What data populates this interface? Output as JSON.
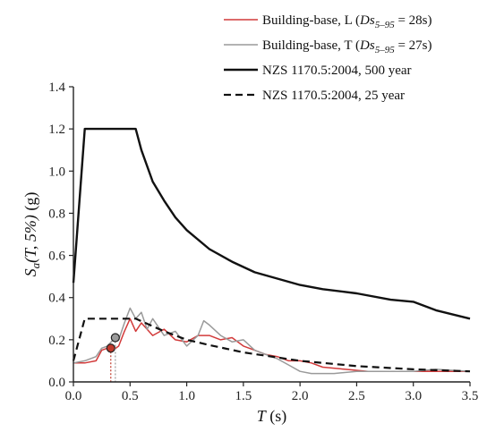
{
  "chart_data": {
    "type": "line",
    "xlabel_main": "T",
    "xlabel_unit": "(s)",
    "ylabel": "Sa(T, 5%) (g)",
    "ylabel_parts": {
      "var": "S",
      "sub": "a",
      "args": "(T, 5%)",
      "unit": "(g)"
    },
    "xlim": [
      0,
      3.5
    ],
    "ylim": [
      0,
      1.4
    ],
    "xticks": [
      0.0,
      0.5,
      1.0,
      1.5,
      2.0,
      2.5,
      3.0,
      3.5
    ],
    "xtick_labels": [
      "0.0",
      "0.5",
      "1.0",
      "1.5",
      "2.0",
      "2.5",
      "3.0",
      "3.5"
    ],
    "yticks": [
      0.0,
      0.2,
      0.4,
      0.6,
      0.8,
      1.0,
      1.2,
      1.4
    ],
    "ytick_labels": [
      "0.0",
      "0.2",
      "0.4",
      "0.6",
      "0.8",
      "1.0",
      "1.2",
      "1.4"
    ],
    "grid": false,
    "legend_position": "top-right",
    "series": [
      {
        "name": "Building-base, L (Ds5–95 = 28s)",
        "legend_main": "Building-base, L (",
        "legend_var": "Ds",
        "legend_sub": "5–95",
        "legend_tail": " = 28s)",
        "color": "#d23a3a",
        "dash": "solid",
        "x": [
          0,
          0.1,
          0.2,
          0.25,
          0.3,
          0.35,
          0.4,
          0.45,
          0.5,
          0.55,
          0.6,
          0.7,
          0.8,
          0.9,
          1.0,
          1.1,
          1.2,
          1.3,
          1.4,
          1.5,
          1.6,
          1.7,
          1.8,
          1.9,
          2.0,
          2.1,
          2.2,
          2.4,
          2.6,
          2.8,
          3.0,
          3.2,
          3.5
        ],
        "y": [
          0.09,
          0.09,
          0.1,
          0.15,
          0.16,
          0.15,
          0.17,
          0.24,
          0.3,
          0.24,
          0.28,
          0.22,
          0.25,
          0.2,
          0.19,
          0.22,
          0.22,
          0.2,
          0.21,
          0.17,
          0.15,
          0.13,
          0.12,
          0.1,
          0.1,
          0.09,
          0.07,
          0.06,
          0.05,
          0.05,
          0.05,
          0.05,
          0.05
        ]
      },
      {
        "name": "Building-base, T (Ds5–95 = 27s)",
        "legend_main": "Building-base, T (",
        "legend_var": "Ds",
        "legend_sub": "5–95",
        "legend_tail": " = 27s)",
        "color": "#9a9a9a",
        "dash": "solid",
        "x": [
          0,
          0.1,
          0.2,
          0.25,
          0.3,
          0.35,
          0.4,
          0.45,
          0.5,
          0.55,
          0.6,
          0.65,
          0.7,
          0.8,
          0.9,
          1.0,
          1.1,
          1.15,
          1.2,
          1.3,
          1.4,
          1.5,
          1.6,
          1.7,
          1.8,
          1.9,
          2.0,
          2.1,
          2.3,
          2.5,
          2.8,
          3.0,
          3.2,
          3.5
        ],
        "y": [
          0.09,
          0.1,
          0.12,
          0.16,
          0.17,
          0.2,
          0.2,
          0.28,
          0.35,
          0.3,
          0.33,
          0.25,
          0.3,
          0.22,
          0.24,
          0.17,
          0.22,
          0.29,
          0.27,
          0.22,
          0.19,
          0.2,
          0.15,
          0.13,
          0.11,
          0.08,
          0.05,
          0.04,
          0.04,
          0.05,
          0.05,
          0.05,
          0.06,
          0.05
        ]
      },
      {
        "name": "NZS 1170.5:2004, 500 year",
        "legend_main": "NZS 1170.5:2004, 500 year",
        "color": "#111111",
        "dash": "solid",
        "x": [
          0,
          0.1,
          0.55,
          0.6,
          0.7,
          0.8,
          0.9,
          1.0,
          1.2,
          1.4,
          1.6,
          1.8,
          2.0,
          2.2,
          2.5,
          2.8,
          3.0,
          3.2,
          3.5
        ],
        "y": [
          0.47,
          1.2,
          1.2,
          1.1,
          0.95,
          0.86,
          0.78,
          0.72,
          0.63,
          0.57,
          0.52,
          0.49,
          0.46,
          0.44,
          0.42,
          0.39,
          0.38,
          0.34,
          0.3
        ]
      },
      {
        "name": "NZS 1170.5:2004, 25 year",
        "legend_main": "NZS 1170.5:2004, 25 year",
        "color": "#111111",
        "dash": "dashed",
        "x": [
          0,
          0.1,
          0.55,
          0.8,
          1.0,
          1.2,
          1.5,
          2.0,
          2.5,
          3.0,
          3.5
        ],
        "y": [
          0.1,
          0.3,
          0.3,
          0.24,
          0.2,
          0.175,
          0.14,
          0.1,
          0.075,
          0.06,
          0.05
        ]
      }
    ],
    "markers": [
      {
        "x": 0.33,
        "y": 0.16,
        "color": "#c0392b"
      },
      {
        "x": 0.37,
        "y": 0.21,
        "color": "#9a9a9a"
      }
    ]
  }
}
